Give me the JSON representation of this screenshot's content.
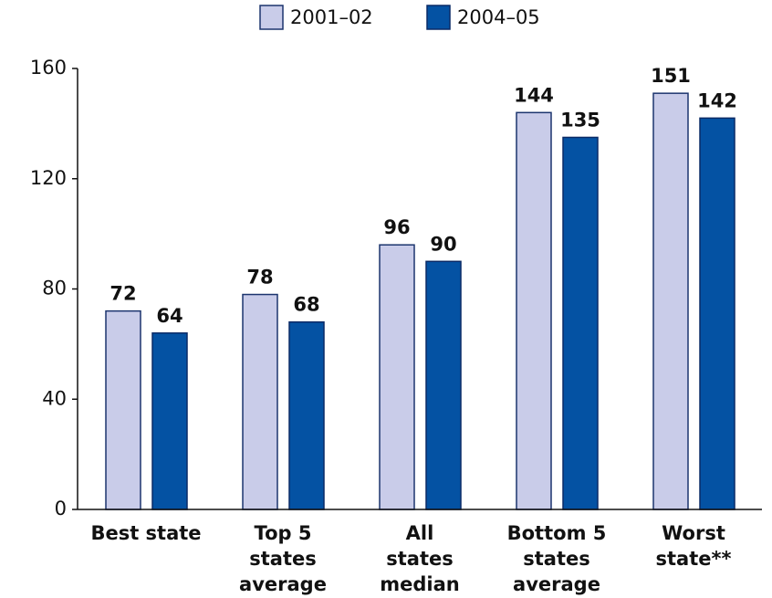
{
  "chart_data": {
    "type": "bar",
    "categories": [
      [
        "Best state"
      ],
      [
        "Top 5",
        "states",
        "average"
      ],
      [
        "All",
        "states",
        "median"
      ],
      [
        "Bottom 5",
        "states",
        "average"
      ],
      [
        "Worst",
        "state**"
      ]
    ],
    "series": [
      {
        "name": "2001–02",
        "color": "#c9cce9",
        "values": [
          72,
          78,
          96,
          144,
          151
        ]
      },
      {
        "name": "2004–05",
        "color": "#0452a3",
        "values": [
          64,
          68,
          90,
          135,
          142
        ]
      }
    ],
    "ylim": [
      0,
      160
    ],
    "yticks": [
      0,
      40,
      80,
      120,
      160
    ],
    "grid": false
  }
}
